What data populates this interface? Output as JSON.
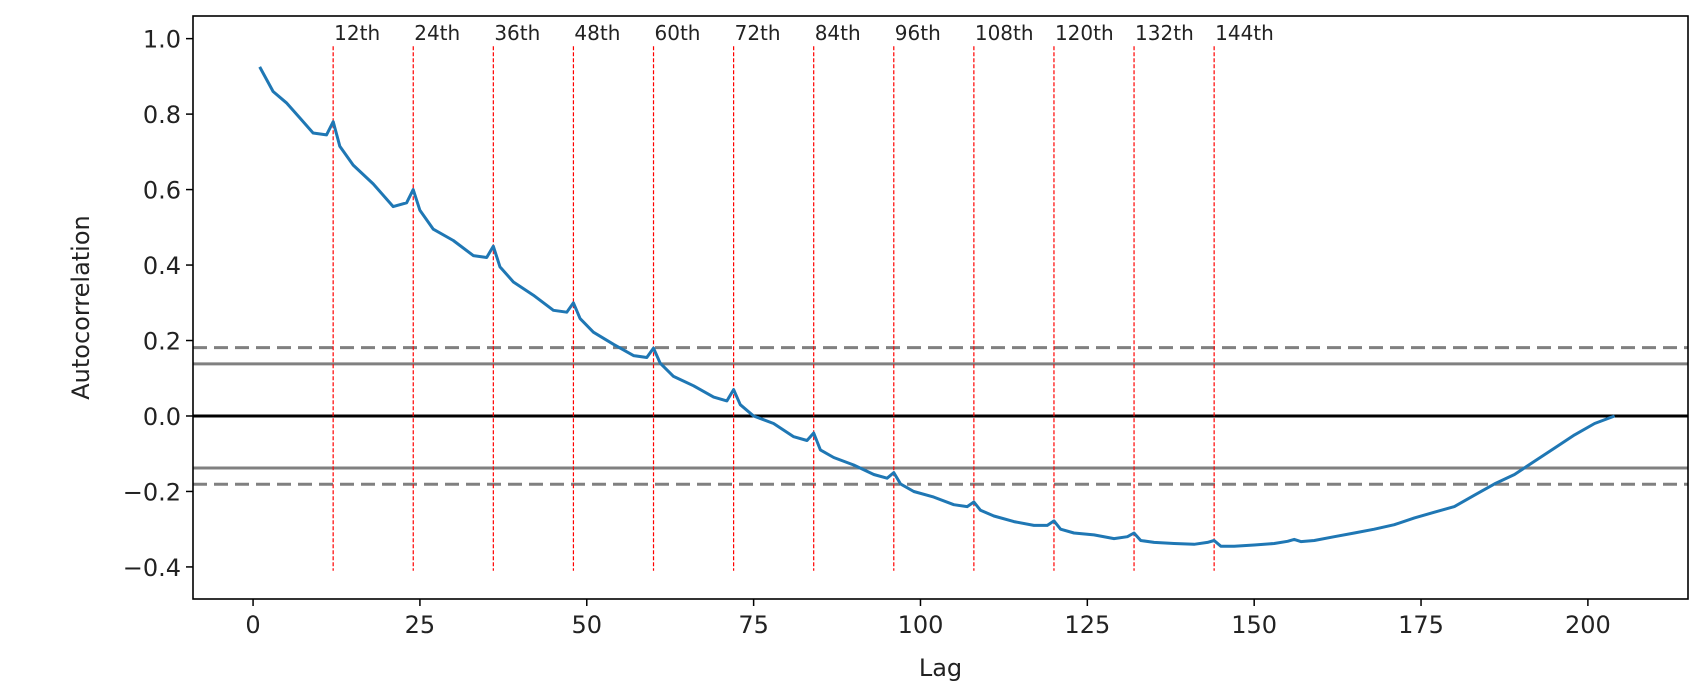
{
  "chart_data": {
    "type": "line",
    "title": "",
    "xlabel": "Lag",
    "ylabel": "Autocorrelation",
    "xlim": [
      -9,
      215
    ],
    "ylim": [
      -0.485,
      1.06
    ],
    "x_ticks": [
      0,
      25,
      50,
      75,
      100,
      125,
      150,
      175,
      200
    ],
    "x_tick_labels": [
      "0",
      "25",
      "50",
      "75",
      "100",
      "125",
      "150",
      "175",
      "200"
    ],
    "y_ticks": [
      1.0,
      0.8,
      0.6,
      0.4,
      0.2,
      0.0,
      -0.2,
      -0.4
    ],
    "y_tick_labels": [
      "1.0",
      "0.8",
      "0.6",
      "0.4",
      "0.2",
      "0.0",
      "−0.2",
      "−0.4"
    ],
    "grid": false,
    "series_color": "#1f77b4",
    "reference_lines": {
      "zero": {
        "y": 0.0,
        "color": "#000000",
        "style": "solid"
      },
      "ci_95": {
        "y": [
          0.138,
          -0.138
        ],
        "color": "#808080",
        "style": "solid"
      },
      "ci_99": {
        "y": [
          0.181,
          -0.181
        ],
        "color": "#808080",
        "style": "dashed"
      }
    },
    "vertical_markers": {
      "color": "#ff0000",
      "style": "dashed",
      "y_range": [
        -0.41,
        0.98
      ],
      "x": [
        12,
        24,
        36,
        48,
        60,
        72,
        84,
        96,
        108,
        120,
        132,
        144
      ],
      "labels": [
        "12th",
        "24th",
        "36th",
        "48th",
        "60th",
        "72th",
        "84th",
        "96th",
        "108th",
        "120th",
        "132th",
        "144th"
      ]
    },
    "series": [
      {
        "x": [
          1,
          3,
          5,
          7,
          9,
          11,
          12,
          13,
          15,
          18,
          21,
          23,
          24,
          25,
          27,
          30,
          33,
          35,
          36,
          37,
          39,
          42,
          45,
          47,
          48,
          49,
          51,
          54,
          57,
          59,
          60,
          61,
          63,
          66,
          69,
          71,
          72,
          73,
          75,
          78,
          81,
          83,
          84,
          85,
          87,
          90,
          93,
          95,
          96,
          97,
          99,
          102,
          105,
          107,
          108,
          109,
          111,
          114,
          117,
          119,
          120,
          121,
          123,
          126,
          129,
          131,
          132,
          133,
          135,
          138,
          141,
          143,
          144,
          145,
          147,
          150,
          153,
          155,
          156,
          157,
          159,
          162,
          165,
          168,
          171,
          174,
          177,
          180,
          183,
          186,
          189,
          192,
          195,
          198,
          201,
          204
        ],
        "y": [
          0.925,
          0.86,
          0.83,
          0.79,
          0.75,
          0.745,
          0.78,
          0.715,
          0.665,
          0.615,
          0.555,
          0.565,
          0.6,
          0.545,
          0.495,
          0.465,
          0.425,
          0.42,
          0.45,
          0.395,
          0.355,
          0.32,
          0.28,
          0.275,
          0.3,
          0.258,
          0.222,
          0.19,
          0.16,
          0.155,
          0.18,
          0.14,
          0.105,
          0.08,
          0.05,
          0.04,
          0.07,
          0.03,
          0.0,
          -0.02,
          -0.055,
          -0.065,
          -0.045,
          -0.09,
          -0.11,
          -0.13,
          -0.155,
          -0.165,
          -0.15,
          -0.18,
          -0.2,
          -0.215,
          -0.235,
          -0.24,
          -0.228,
          -0.25,
          -0.265,
          -0.28,
          -0.29,
          -0.29,
          -0.278,
          -0.3,
          -0.31,
          -0.315,
          -0.325,
          -0.32,
          -0.31,
          -0.33,
          -0.335,
          -0.338,
          -0.34,
          -0.335,
          -0.33,
          -0.345,
          -0.345,
          -0.342,
          -0.338,
          -0.332,
          -0.327,
          -0.333,
          -0.33,
          -0.32,
          -0.31,
          -0.3,
          -0.288,
          -0.27,
          -0.255,
          -0.24,
          -0.21,
          -0.18,
          -0.155,
          -0.12,
          -0.085,
          -0.05,
          -0.02,
          0.0
        ]
      }
    ]
  }
}
